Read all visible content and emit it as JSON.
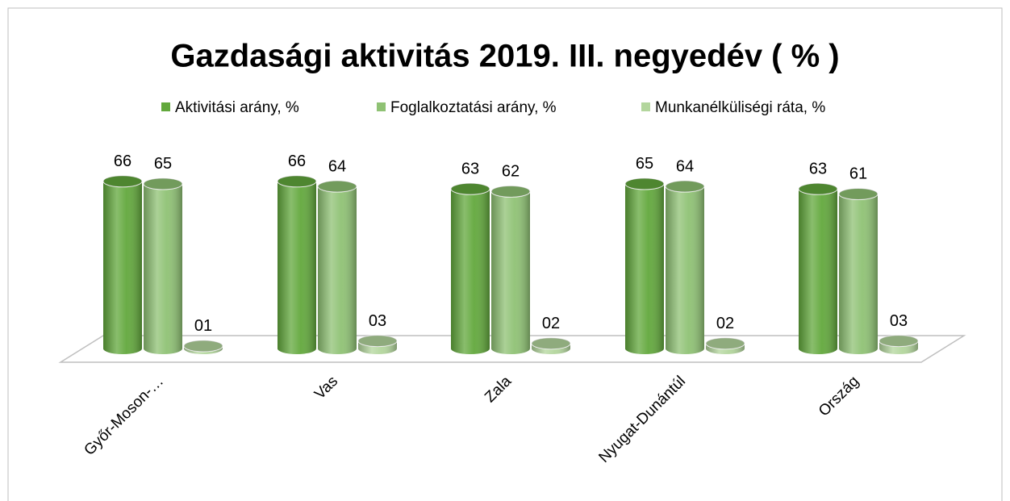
{
  "chart_data": {
    "type": "bar3d",
    "title": "Gazdasági aktivitás 2019. III. negyedév ( % )",
    "categories": [
      "Győr-Moson-…",
      "Vas",
      "Zala",
      "Nyugat-Dunántúl",
      "Ország"
    ],
    "series": [
      {
        "name": "Aktivitási arány, %",
        "color": "#62a83c",
        "values": [
          66,
          66,
          63,
          65,
          63
        ]
      },
      {
        "name": "Foglalkoztatási arány, %",
        "color": "#8fc274",
        "values": [
          65,
          64,
          62,
          64,
          61
        ]
      },
      {
        "name": "Munkanélküliségi ráta, %",
        "color": "#b3d69d",
        "values": [
          1,
          3,
          2,
          2,
          3
        ],
        "value_labels": [
          "01",
          "03",
          "02",
          "02",
          "03"
        ]
      }
    ],
    "legend": "top"
  }
}
